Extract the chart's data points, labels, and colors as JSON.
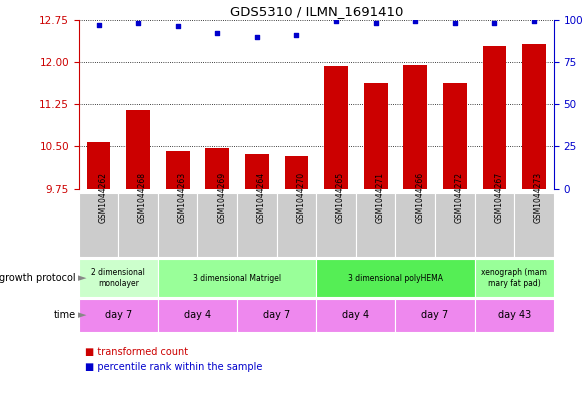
{
  "title": "GDS5310 / ILMN_1691410",
  "samples": [
    "GSM1044262",
    "GSM1044268",
    "GSM1044263",
    "GSM1044269",
    "GSM1044264",
    "GSM1044270",
    "GSM1044265",
    "GSM1044271",
    "GSM1044266",
    "GSM1044272",
    "GSM1044267",
    "GSM1044273"
  ],
  "bar_values": [
    10.57,
    11.15,
    10.42,
    10.48,
    10.37,
    10.33,
    11.92,
    11.62,
    11.95,
    11.62,
    12.28,
    12.32
  ],
  "percentile_values": [
    97,
    98,
    96,
    92,
    90,
    91,
    99,
    98,
    99,
    98,
    98,
    99
  ],
  "ylim_left": [
    9.75,
    12.75
  ],
  "yticks_left": [
    9.75,
    10.5,
    11.25,
    12.0,
    12.75
  ],
  "yticks_right": [
    0,
    25,
    50,
    75,
    100
  ],
  "ylim_right": [
    0,
    100
  ],
  "bar_color": "#cc0000",
  "dot_color": "#0000cc",
  "growth_protocol_groups": [
    {
      "label": "2 dimensional\nmonolayer",
      "start": 0,
      "end": 2,
      "color": "#ccffcc"
    },
    {
      "label": "3 dimensional Matrigel",
      "start": 2,
      "end": 6,
      "color": "#99ff99"
    },
    {
      "label": "3 dimensional polyHEMA",
      "start": 6,
      "end": 10,
      "color": "#55ee55"
    },
    {
      "label": "xenograph (mam\nmary fat pad)",
      "start": 10,
      "end": 12,
      "color": "#99ff99"
    }
  ],
  "time_groups": [
    {
      "label": "day 7",
      "start": 0,
      "end": 2
    },
    {
      "label": "day 4",
      "start": 2,
      "end": 4
    },
    {
      "label": "day 7",
      "start": 4,
      "end": 6
    },
    {
      "label": "day 4",
      "start": 6,
      "end": 8
    },
    {
      "label": "day 7",
      "start": 8,
      "end": 10
    },
    {
      "label": "day 43",
      "start": 10,
      "end": 12
    }
  ],
  "time_color": "#ee88ee",
  "sample_bg_color": "#cccccc",
  "legend_items": [
    {
      "label": "transformed count",
      "color": "#cc0000"
    },
    {
      "label": "percentile rank within the sample",
      "color": "#0000cc"
    }
  ]
}
